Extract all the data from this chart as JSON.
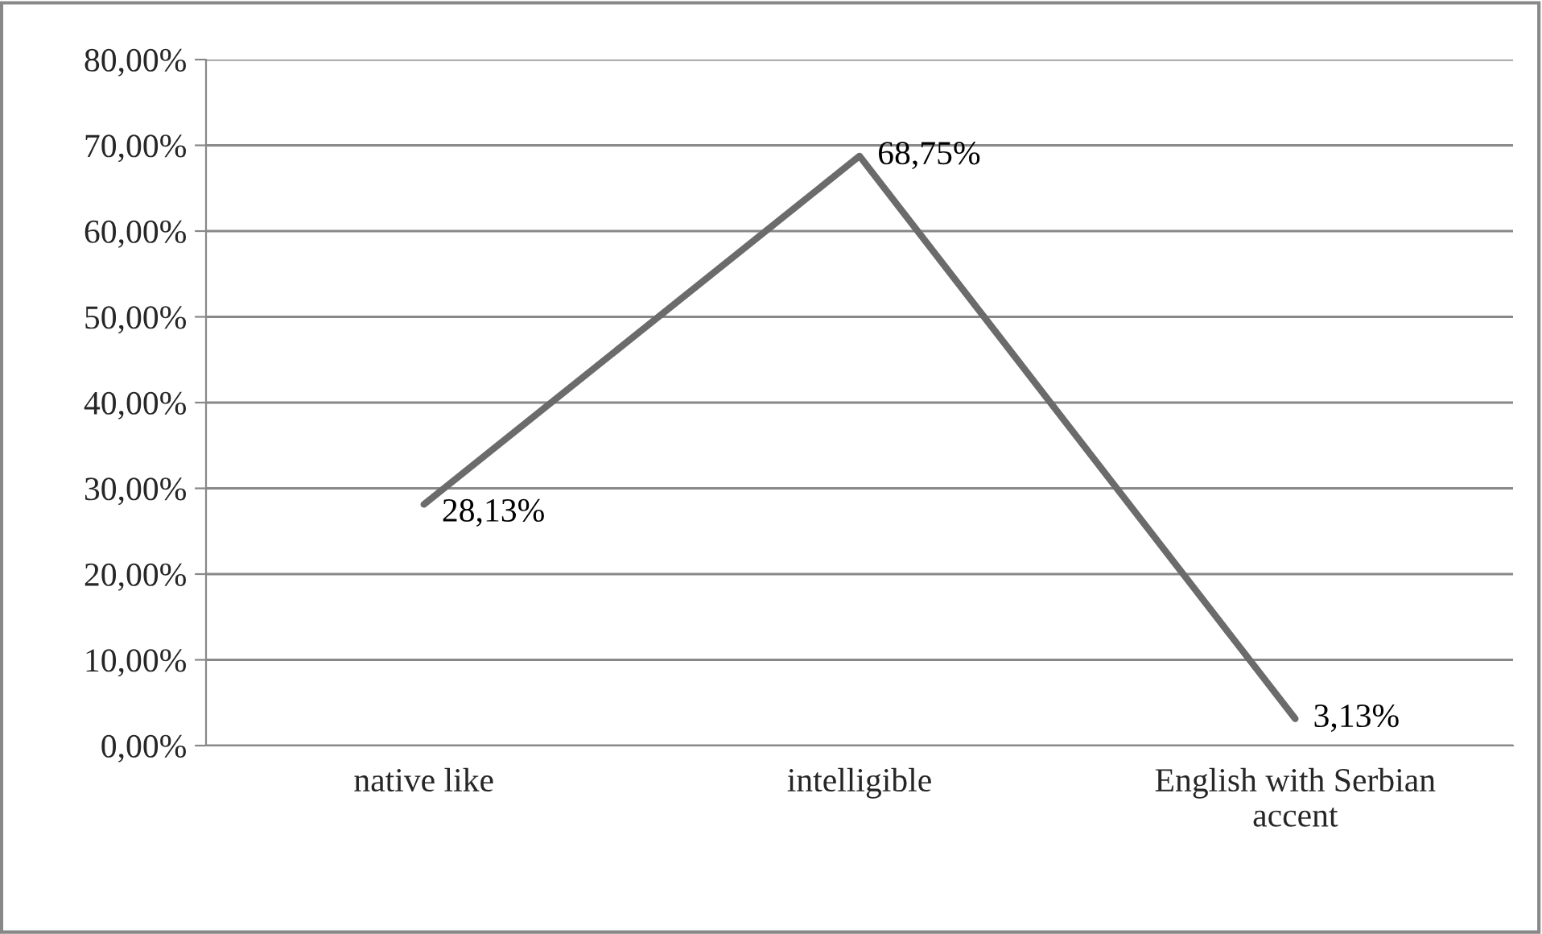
{
  "chart_data": {
    "type": "line",
    "categories": [
      "native like",
      "intelligible",
      "English with Serbian\naccent"
    ],
    "series": [
      {
        "color": "#6b6b6b",
        "values": [
          28.13,
          68.75,
          3.13
        ],
        "value_labels": [
          "28,13%",
          "68,75%",
          "3,13%"
        ]
      }
    ],
    "ylim": [
      0,
      80
    ],
    "yticks": [
      {
        "value": 0,
        "label": "0,00%"
      },
      {
        "value": 10,
        "label": "10,00%"
      },
      {
        "value": 20,
        "label": "20,00%"
      },
      {
        "value": 30,
        "label": "30,00%"
      },
      {
        "value": 40,
        "label": "40,00%"
      },
      {
        "value": 50,
        "label": "50,00%"
      },
      {
        "value": 60,
        "label": "60,00%"
      },
      {
        "value": 70,
        "label": "70,00%"
      },
      {
        "value": 80,
        "label": "80,00%"
      }
    ],
    "grid": "y",
    "marker": "none",
    "line_style": "solid",
    "legend": false
  }
}
